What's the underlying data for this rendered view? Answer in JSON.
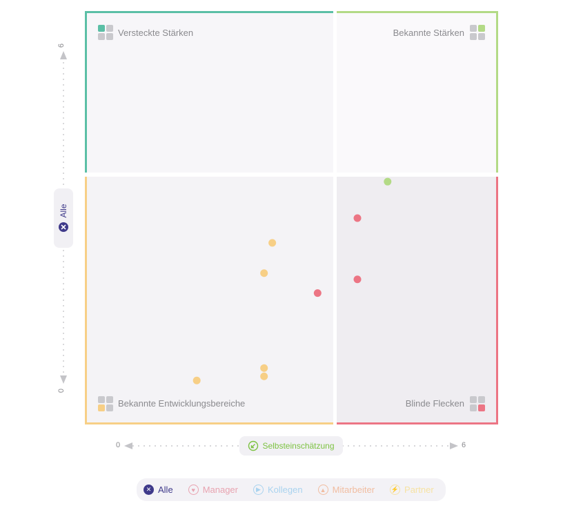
{
  "chart_data": {
    "type": "scatter",
    "xlabel": "Selbsteinschätzung",
    "ylabel": "Alle",
    "xlim": [
      0,
      6
    ],
    "ylim": [
      0,
      6
    ],
    "x_ticks": [
      "0",
      "6"
    ],
    "y_ticks": [
      "0",
      "6"
    ],
    "quadrants": [
      {
        "label": "Versteckte Stärken",
        "position": "top-left",
        "color": "#5bbfa6"
      },
      {
        "label": "Bekannte Stärken",
        "position": "top-right",
        "color": "#b3da86"
      },
      {
        "label": "Bekannte Entwicklungsbereiche",
        "position": "bottom-left",
        "color": "#f7cf86"
      },
      {
        "label": "Blinde Flecken",
        "position": "bottom-right",
        "color": "#ec7584"
      }
    ],
    "points": [
      {
        "x": 4.4,
        "y": 3.53,
        "color": "#b3da86"
      },
      {
        "x": 3.96,
        "y": 3.0,
        "color": "#ec7584"
      },
      {
        "x": 3.96,
        "y": 2.11,
        "color": "#ec7584"
      },
      {
        "x": 3.38,
        "y": 1.91,
        "color": "#ec7584"
      },
      {
        "x": 2.72,
        "y": 2.64,
        "color": "#f7cf86"
      },
      {
        "x": 2.6,
        "y": 2.2,
        "color": "#f7cf86"
      },
      {
        "x": 2.6,
        "y": 0.82,
        "color": "#f7cf86"
      },
      {
        "x": 2.6,
        "y": 0.7,
        "color": "#f7cf86"
      },
      {
        "x": 1.62,
        "y": 0.64,
        "color": "#f7cf86"
      }
    ]
  },
  "legend": [
    {
      "label": "Alle",
      "color": "#3f3a8a",
      "icon": "cross-circle-icon",
      "active": true
    },
    {
      "label": "Manager",
      "color": "#e8a3b0",
      "icon": "manager-icon",
      "active": false
    },
    {
      "label": "Kollegen",
      "color": "#a9d3ef",
      "icon": "colleagues-icon",
      "active": false
    },
    {
      "label": "Mitarbeiter",
      "color": "#f1bda1",
      "icon": "employee-icon",
      "active": false
    },
    {
      "label": "Partner",
      "color": "#f6e2a3",
      "icon": "partner-icon",
      "active": false
    }
  ]
}
